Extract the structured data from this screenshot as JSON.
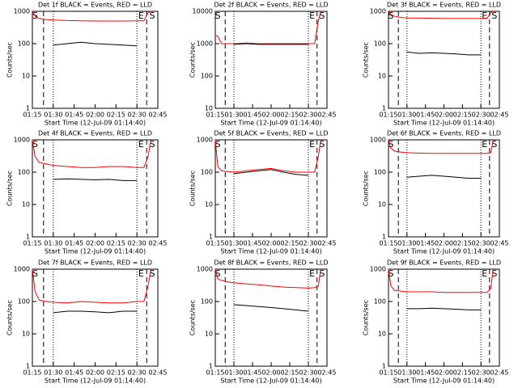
{
  "chart_data": [
    {
      "type": "line",
      "title": "Det 1f BLACK = Events, RED = LLD",
      "ylabel": "Counts/sec",
      "xlabel": "Start Time (12-Jul-09 01:14:40)",
      "log_y": true,
      "ylim": [
        1,
        1000
      ],
      "yticks": [
        1,
        10,
        100,
        1000
      ],
      "xlim": [
        "01:15",
        "02:45"
      ],
      "xticks": [
        "01:15",
        "01:30",
        "01:45",
        "02:00",
        "02:15",
        "02:30",
        "02:45"
      ],
      "x": [
        "01:15",
        "01:17",
        "01:20",
        "01:25",
        "01:30",
        "01:40",
        "01:50",
        "02:00",
        "02:10",
        "02:20",
        "02:30",
        "02:35",
        "02:38",
        "02:40"
      ],
      "series": [
        {
          "color": "#ff0000",
          "values": [
            1000,
            700,
            600,
            560,
            540,
            520,
            510,
            500,
            500,
            500,
            510,
            510,
            900,
            1000
          ]
        },
        {
          "color": "#000000",
          "values": [
            null,
            null,
            null,
            null,
            90,
            100,
            110,
            100,
            95,
            90,
            85,
            null,
            null,
            null
          ]
        }
      ],
      "markers": [
        {
          "label": "S",
          "x": "01:17"
        },
        {
          "label": "E",
          "x": "02:33"
        },
        {
          "label": "S",
          "x": "02:41"
        }
      ],
      "dashed_lines": [
        "01:23",
        "02:37"
      ],
      "dotted_lines": [
        "01:30",
        "02:30"
      ]
    },
    {
      "type": "line",
      "title": "Det 2f BLACK = Events, RED = LLD",
      "ylabel": "Counts/sec",
      "xlabel": "Start Time (12-Jul-09 01:14:40)",
      "log_y": true,
      "ylim": [
        10,
        10000
      ],
      "yticks": [
        10,
        100,
        1000,
        10000
      ],
      "xlim": [
        "01:15",
        "02:45"
      ],
      "xticks": [
        "01:15",
        "01:30",
        "01:45",
        "02:00",
        "02:15",
        "02:30",
        "02:45"
      ],
      "x": [
        "01:15",
        "01:17",
        "01:20",
        "01:25",
        "01:30",
        "01:40",
        "01:50",
        "02:00",
        "02:10",
        "02:20",
        "02:30",
        "02:35",
        "02:38",
        "02:40"
      ],
      "series": [
        {
          "color": "#ff0000",
          "values": [
            1800,
            1700,
            1000,
            1000,
            1000,
            1050,
            1000,
            1000,
            1000,
            1000,
            1000,
            1000,
            5000,
            10000
          ]
        },
        {
          "color": "#000000",
          "values": [
            null,
            null,
            null,
            null,
            950,
            1000,
            950,
            950,
            950,
            950,
            950,
            null,
            null,
            null
          ]
        }
      ],
      "markers": [
        {
          "label": "S",
          "x": "01:17"
        },
        {
          "label": "E",
          "x": "02:33"
        },
        {
          "label": "S",
          "x": "02:41"
        }
      ],
      "dashed_lines": [
        "01:23",
        "02:37"
      ],
      "dotted_lines": [
        "01:30",
        "02:30"
      ]
    },
    {
      "type": "line",
      "title": "Det 3f BLACK = Events, RED = LLD",
      "ylabel": "Counts/sec",
      "xlabel": "Start Time (12-Jul-09 01:14:40)",
      "log_y": true,
      "ylim": [
        1,
        1000
      ],
      "yticks": [
        1,
        10,
        100,
        1000
      ],
      "xlim": [
        "01:15",
        "02:45"
      ],
      "xticks": [
        "01:15",
        "01:30",
        "01:45",
        "02:00",
        "02:15",
        "02:30",
        "02:45"
      ],
      "x": [
        "01:15",
        "01:17",
        "01:20",
        "01:25",
        "01:30",
        "01:40",
        "01:50",
        "02:00",
        "02:10",
        "02:20",
        "02:30",
        "02:35",
        "02:38",
        "02:40"
      ],
      "series": [
        {
          "color": "#ff0000",
          "values": [
            1000,
            800,
            700,
            650,
            620,
            620,
            610,
            600,
            600,
            600,
            600,
            600,
            900,
            1000
          ]
        },
        {
          "color": "#000000",
          "values": [
            null,
            null,
            null,
            null,
            55,
            50,
            52,
            50,
            48,
            45,
            45,
            null,
            null,
            null
          ]
        }
      ],
      "markers": [
        {
          "label": "S",
          "x": "01:17"
        },
        {
          "label": "E",
          "x": "02:33"
        },
        {
          "label": "S",
          "x": "02:41"
        }
      ],
      "dashed_lines": [
        "01:23",
        "02:37"
      ],
      "dotted_lines": [
        "01:30",
        "02:30"
      ]
    },
    {
      "type": "line",
      "title": "Det 4f BLACK = Events, RED = LLD",
      "ylabel": "Counts/sec",
      "xlabel": "Start Time (12-Jul-09 01:14:40)",
      "log_y": true,
      "ylim": [
        1,
        1000
      ],
      "yticks": [
        1,
        10,
        100,
        1000
      ],
      "xlim": [
        "01:15",
        "02:45"
      ],
      "xticks": [
        "01:15",
        "01:30",
        "01:45",
        "02:00",
        "02:15",
        "02:30",
        "02:45"
      ],
      "x": [
        "01:15",
        "01:17",
        "01:20",
        "01:25",
        "01:30",
        "01:40",
        "01:50",
        "02:00",
        "02:10",
        "02:20",
        "02:30",
        "02:35",
        "02:38",
        "02:40"
      ],
      "series": [
        {
          "color": "#ff0000",
          "values": [
            1000,
            300,
            200,
            180,
            160,
            150,
            140,
            140,
            150,
            150,
            140,
            140,
            300,
            1000
          ]
        },
        {
          "color": "#000000",
          "values": [
            null,
            null,
            null,
            null,
            60,
            62,
            60,
            58,
            60,
            55,
            55,
            null,
            null,
            null
          ]
        }
      ],
      "markers": [
        {
          "label": "S",
          "x": "01:17"
        },
        {
          "label": "E",
          "x": "02:33"
        },
        {
          "label": "S",
          "x": "02:41"
        }
      ],
      "dashed_lines": [
        "01:23",
        "02:37"
      ],
      "dotted_lines": [
        "01:30",
        "02:30"
      ]
    },
    {
      "type": "line",
      "title": "Det 5f BLACK = Events, RED = LLD",
      "ylabel": "Counts/sec",
      "xlabel": "Start Time (12-Jul-09 01:14:40)",
      "log_y": true,
      "ylim": [
        1,
        1000
      ],
      "yticks": [
        1,
        10,
        100,
        1000
      ],
      "xlim": [
        "01:15",
        "02:45"
      ],
      "xticks": [
        "01:15",
        "01:30",
        "01:45",
        "02:00",
        "02:15",
        "02:30",
        "02:45"
      ],
      "x": [
        "01:15",
        "01:17",
        "01:20",
        "01:25",
        "01:30",
        "01:40",
        "01:50",
        "02:00",
        "02:10",
        "02:20",
        "02:30",
        "02:35",
        "02:38",
        "02:40"
      ],
      "series": [
        {
          "color": "#ff0000",
          "values": [
            1000,
            150,
            110,
            105,
            100,
            110,
            120,
            130,
            110,
            100,
            100,
            100,
            300,
            1000
          ]
        },
        {
          "color": "#000000",
          "values": [
            null,
            null,
            null,
            null,
            90,
            100,
            110,
            120,
            100,
            85,
            80,
            null,
            null,
            null
          ]
        }
      ],
      "markers": [
        {
          "label": "S",
          "x": "01:17"
        },
        {
          "label": "E",
          "x": "02:33"
        },
        {
          "label": "S",
          "x": "02:41"
        }
      ],
      "dashed_lines": [
        "01:23",
        "02:37"
      ],
      "dotted_lines": [
        "01:30",
        "02:30"
      ]
    },
    {
      "type": "line",
      "title": "Det 6f BLACK = Events, RED = LLD",
      "ylabel": "Counts/sec",
      "xlabel": "Start Time (12-Jul-09 01:14:40)",
      "log_y": true,
      "ylim": [
        1,
        1000
      ],
      "yticks": [
        1,
        10,
        100,
        1000
      ],
      "xlim": [
        "01:15",
        "02:45"
      ],
      "xticks": [
        "01:15",
        "01:30",
        "01:45",
        "02:00",
        "02:15",
        "02:30",
        "02:45"
      ],
      "x": [
        "01:15",
        "01:17",
        "01:20",
        "01:25",
        "01:30",
        "01:40",
        "01:50",
        "02:00",
        "02:10",
        "02:20",
        "02:30",
        "02:35",
        "02:38",
        "02:40"
      ],
      "series": [
        {
          "color": "#ff0000",
          "values": [
            1000,
            550,
            450,
            420,
            400,
            390,
            380,
            380,
            380,
            380,
            380,
            380,
            400,
            1000
          ]
        },
        {
          "color": "#000000",
          "values": [
            null,
            null,
            null,
            null,
            70,
            75,
            80,
            75,
            70,
            65,
            65,
            null,
            null,
            null
          ]
        }
      ],
      "markers": [
        {
          "label": "S",
          "x": "01:17"
        },
        {
          "label": "E",
          "x": "02:33"
        },
        {
          "label": "S",
          "x": "02:41"
        }
      ],
      "dashed_lines": [
        "01:23",
        "02:37"
      ],
      "dotted_lines": [
        "01:30",
        "02:30"
      ]
    },
    {
      "type": "line",
      "title": "Det 7f BLACK = Events, RED = LLD",
      "ylabel": "Counts/sec",
      "xlabel": "Start Time (12-Jul-09 01:14:40)",
      "log_y": true,
      "ylim": [
        1,
        1000
      ],
      "yticks": [
        1,
        10,
        100,
        1000
      ],
      "xlim": [
        "01:15",
        "02:45"
      ],
      "xticks": [
        "01:15",
        "01:30",
        "01:45",
        "02:00",
        "02:15",
        "02:30",
        "02:45"
      ],
      "x": [
        "01:15",
        "01:17",
        "01:20",
        "01:25",
        "01:30",
        "01:40",
        "01:50",
        "02:00",
        "02:10",
        "02:20",
        "02:30",
        "02:35",
        "02:38",
        "02:40"
      ],
      "series": [
        {
          "color": "#ff0000",
          "values": [
            1000,
            200,
            110,
            100,
            95,
            90,
            100,
            95,
            90,
            90,
            100,
            100,
            300,
            1000
          ]
        },
        {
          "color": "#000000",
          "values": [
            null,
            null,
            null,
            null,
            45,
            50,
            50,
            48,
            45,
            50,
            50,
            null,
            null,
            null
          ]
        }
      ],
      "markers": [
        {
          "label": "S",
          "x": "01:17"
        },
        {
          "label": "E",
          "x": "02:33"
        },
        {
          "label": "S",
          "x": "02:41"
        }
      ],
      "dashed_lines": [
        "01:23",
        "02:37"
      ],
      "dotted_lines": [
        "01:30",
        "02:30"
      ]
    },
    {
      "type": "line",
      "title": "Det 8f BLACK = Events, RED = LLD",
      "ylabel": "Counts/sec",
      "xlabel": "Start Time (12-Jul-09 01:14:40)",
      "log_y": true,
      "ylim": [
        1,
        1000
      ],
      "yticks": [
        1,
        10,
        100,
        1000
      ],
      "xlim": [
        "01:15",
        "02:45"
      ],
      "xticks": [
        "01:15",
        "01:30",
        "01:45",
        "02:00",
        "02:15",
        "02:30",
        "02:45"
      ],
      "x": [
        "01:15",
        "01:17",
        "01:20",
        "01:25",
        "01:30",
        "01:40",
        "01:50",
        "02:00",
        "02:10",
        "02:20",
        "02:30",
        "02:35",
        "02:38",
        "02:40"
      ],
      "series": [
        {
          "color": "#ff0000",
          "values": [
            1000,
            500,
            450,
            400,
            380,
            350,
            330,
            300,
            280,
            270,
            260,
            270,
            300,
            1000
          ]
        },
        {
          "color": "#000000",
          "values": [
            null,
            null,
            null,
            null,
            80,
            75,
            70,
            65,
            60,
            55,
            50,
            null,
            null,
            null
          ]
        }
      ],
      "markers": [
        {
          "label": "S",
          "x": "01:17"
        },
        {
          "label": "E",
          "x": "02:33"
        },
        {
          "label": "S",
          "x": "02:41"
        }
      ],
      "dashed_lines": [
        "01:23",
        "02:37"
      ],
      "dotted_lines": [
        "01:30",
        "02:30"
      ]
    },
    {
      "type": "line",
      "title": "Det 9f BLACK = Events, RED = LLD",
      "ylabel": "Counts/sec",
      "xlabel": "Start Time (12-Jul-09 01:14:40)",
      "log_y": true,
      "ylim": [
        1,
        1000
      ],
      "yticks": [
        1,
        10,
        100,
        1000
      ],
      "xlim": [
        "01:15",
        "02:45"
      ],
      "xticks": [
        "01:15",
        "01:30",
        "01:45",
        "02:00",
        "02:15",
        "02:30",
        "02:45"
      ],
      "x": [
        "01:15",
        "01:17",
        "01:20",
        "01:25",
        "01:30",
        "01:40",
        "01:50",
        "02:00",
        "02:10",
        "02:20",
        "02:30",
        "02:35",
        "02:38",
        "02:40"
      ],
      "series": [
        {
          "color": "#ff0000",
          "values": [
            1000,
            300,
            220,
            210,
            200,
            200,
            200,
            190,
            190,
            190,
            190,
            190,
            250,
            1000
          ]
        },
        {
          "color": "#000000",
          "values": [
            null,
            null,
            null,
            null,
            60,
            60,
            62,
            60,
            58,
            55,
            55,
            null,
            null,
            null
          ]
        }
      ],
      "markers": [
        {
          "label": "S",
          "x": "01:17"
        },
        {
          "label": "E",
          "x": "02:33"
        },
        {
          "label": "S",
          "x": "02:41"
        }
      ],
      "dashed_lines": [
        "01:23",
        "02:37"
      ],
      "dotted_lines": [
        "01:30",
        "02:30"
      ]
    }
  ]
}
